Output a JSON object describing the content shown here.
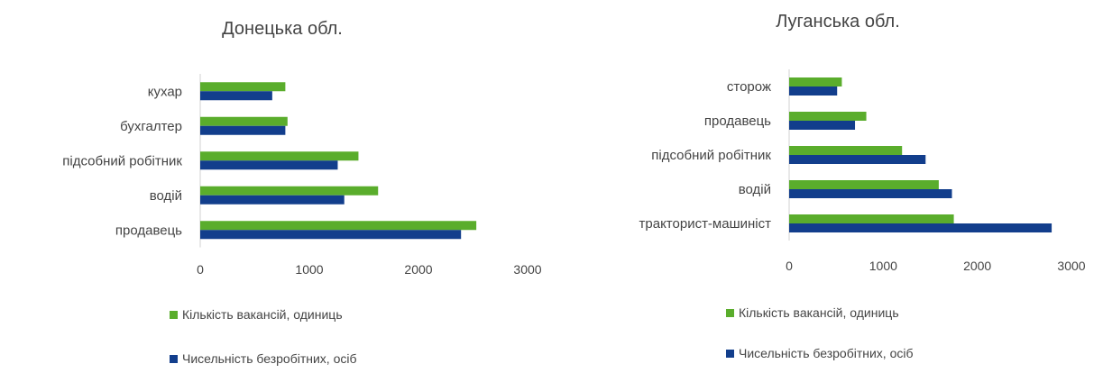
{
  "chart_data": [
    {
      "type": "bar",
      "orientation": "horizontal",
      "title": "Донецька обл.",
      "categories": [
        "кухар",
        "бухгалтер",
        "підсобний робітник",
        "водій",
        "продавець"
      ],
      "series": [
        {
          "name": "Кількість вакансій, одиниць",
          "color": "#5aad2c",
          "values": [
            780,
            800,
            1450,
            1630,
            2530
          ]
        },
        {
          "name": "Чисельність безробітних, осіб",
          "color": "#123e8c",
          "values": [
            660,
            780,
            1260,
            1320,
            2390
          ]
        }
      ],
      "xlim": [
        0,
        3000
      ],
      "xticks": [
        "0",
        "1000",
        "2000",
        "3000"
      ],
      "legend_position": "bottom",
      "grid": false
    },
    {
      "type": "bar",
      "orientation": "horizontal",
      "title": "Луганська обл.",
      "categories": [
        "сторож",
        "продавець",
        "підсобний робітник",
        "водій",
        "тракторист-машиніст"
      ],
      "series": [
        {
          "name": "Кількість вакансій, одиниць",
          "color": "#5aad2c",
          "values": [
            560,
            820,
            1200,
            1590,
            1750
          ]
        },
        {
          "name": "Чисельність безробітних, осіб",
          "color": "#123e8c",
          "values": [
            510,
            700,
            1450,
            1730,
            2790
          ]
        }
      ],
      "xlim": [
        0,
        3000
      ],
      "xticks": [
        "0",
        "1000",
        "2000",
        "3000"
      ],
      "legend_position": "bottom",
      "grid": false
    }
  ]
}
